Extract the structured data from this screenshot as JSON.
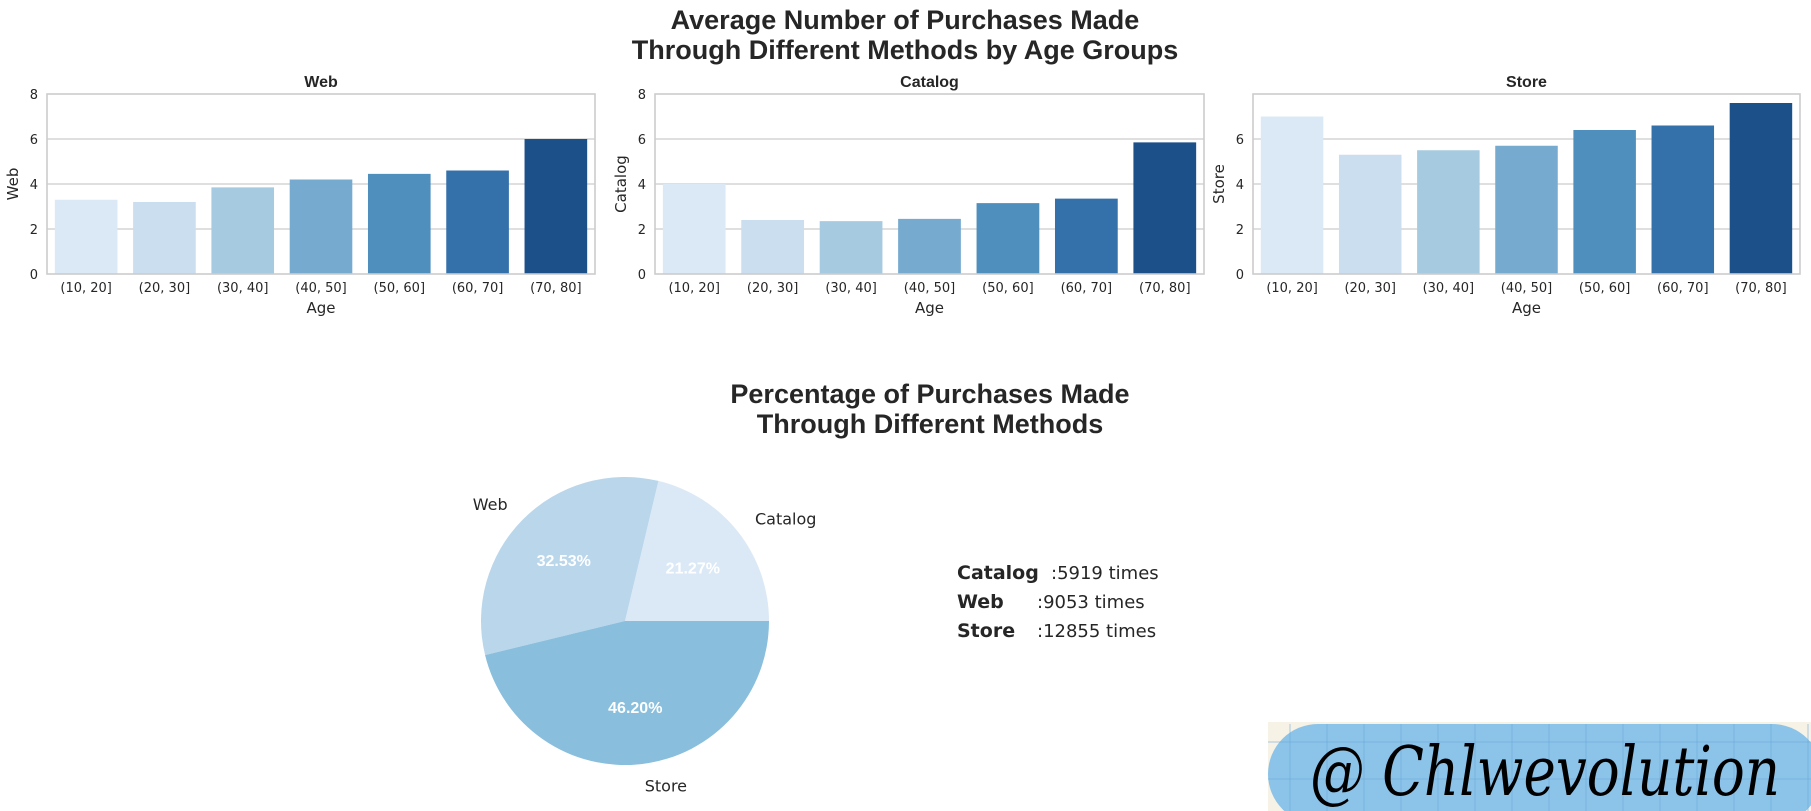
{
  "figure": {
    "suptitle_lines": [
      "Average Number of Purchases Made",
      "Through Different Methods by Age Groups"
    ],
    "palette": [
      "#dbe9f6",
      "#cadef0",
      "#a6cbe1",
      "#77aacf",
      "#4f8fbd",
      "#3470aa",
      "#1c5089"
    ],
    "frame_color": "#cccccc",
    "grid_color": "#cccccc"
  },
  "chart_data": [
    {
      "type": "bar",
      "title": "Web",
      "xlabel": "Age",
      "ylabel": "Web",
      "categories": [
        "(10, 20]",
        "(20, 30]",
        "(30, 40]",
        "(40, 50]",
        "(50, 60]",
        "(60, 70]",
        "(70, 80]"
      ],
      "values": [
        3.3,
        3.2,
        3.85,
        4.2,
        4.45,
        4.6,
        6.0
      ],
      "ylim": [
        0,
        8
      ],
      "yticks": [
        0,
        2,
        4,
        6,
        8
      ],
      "grid": true
    },
    {
      "type": "bar",
      "title": "Catalog",
      "xlabel": "Age",
      "ylabel": "Catalog",
      "categories": [
        "(10, 20]",
        "(20, 30]",
        "(30, 40]",
        "(40, 50]",
        "(50, 60]",
        "(60, 70]",
        "(70, 80]"
      ],
      "values": [
        4.0,
        2.4,
        2.35,
        2.45,
        3.15,
        3.35,
        5.85
      ],
      "ylim": [
        0,
        8
      ],
      "yticks": [
        0,
        2,
        4,
        6,
        8
      ],
      "grid": true
    },
    {
      "type": "bar",
      "title": "Store",
      "xlabel": "Age",
      "ylabel": "Store",
      "categories": [
        "(10, 20]",
        "(20, 30]",
        "(30, 40]",
        "(40, 50]",
        "(50, 60]",
        "(60, 70]",
        "(70, 80]"
      ],
      "values": [
        7.0,
        5.3,
        5.5,
        5.7,
        6.4,
        6.6,
        7.6
      ],
      "ylim": [
        0,
        8
      ],
      "yticks": [
        0,
        2,
        4,
        6
      ],
      "grid": true
    },
    {
      "type": "pie",
      "title_lines": [
        "Percentage of Purchases Made",
        "Through Different Methods"
      ],
      "labels": [
        "Catalog",
        "Web",
        "Store"
      ],
      "values": [
        5919,
        9053,
        12855
      ],
      "percent_labels": [
        "21.27%",
        "32.53%",
        "46.20%"
      ],
      "colors": [
        "#dbe9f6",
        "#bad6eb",
        "#89bedc"
      ]
    }
  ],
  "counts": [
    {
      "name": "Catalog",
      "value": ":5919 times"
    },
    {
      "name": "Web",
      "value": ":9053 times"
    },
    {
      "name": "Store",
      "value": ":12855 times"
    }
  ],
  "watermark": {
    "text": "@ Chlwevolution",
    "background": "#8cc3e8",
    "paper": "#f6f2e6",
    "grid_line": "#6aa7d6"
  }
}
